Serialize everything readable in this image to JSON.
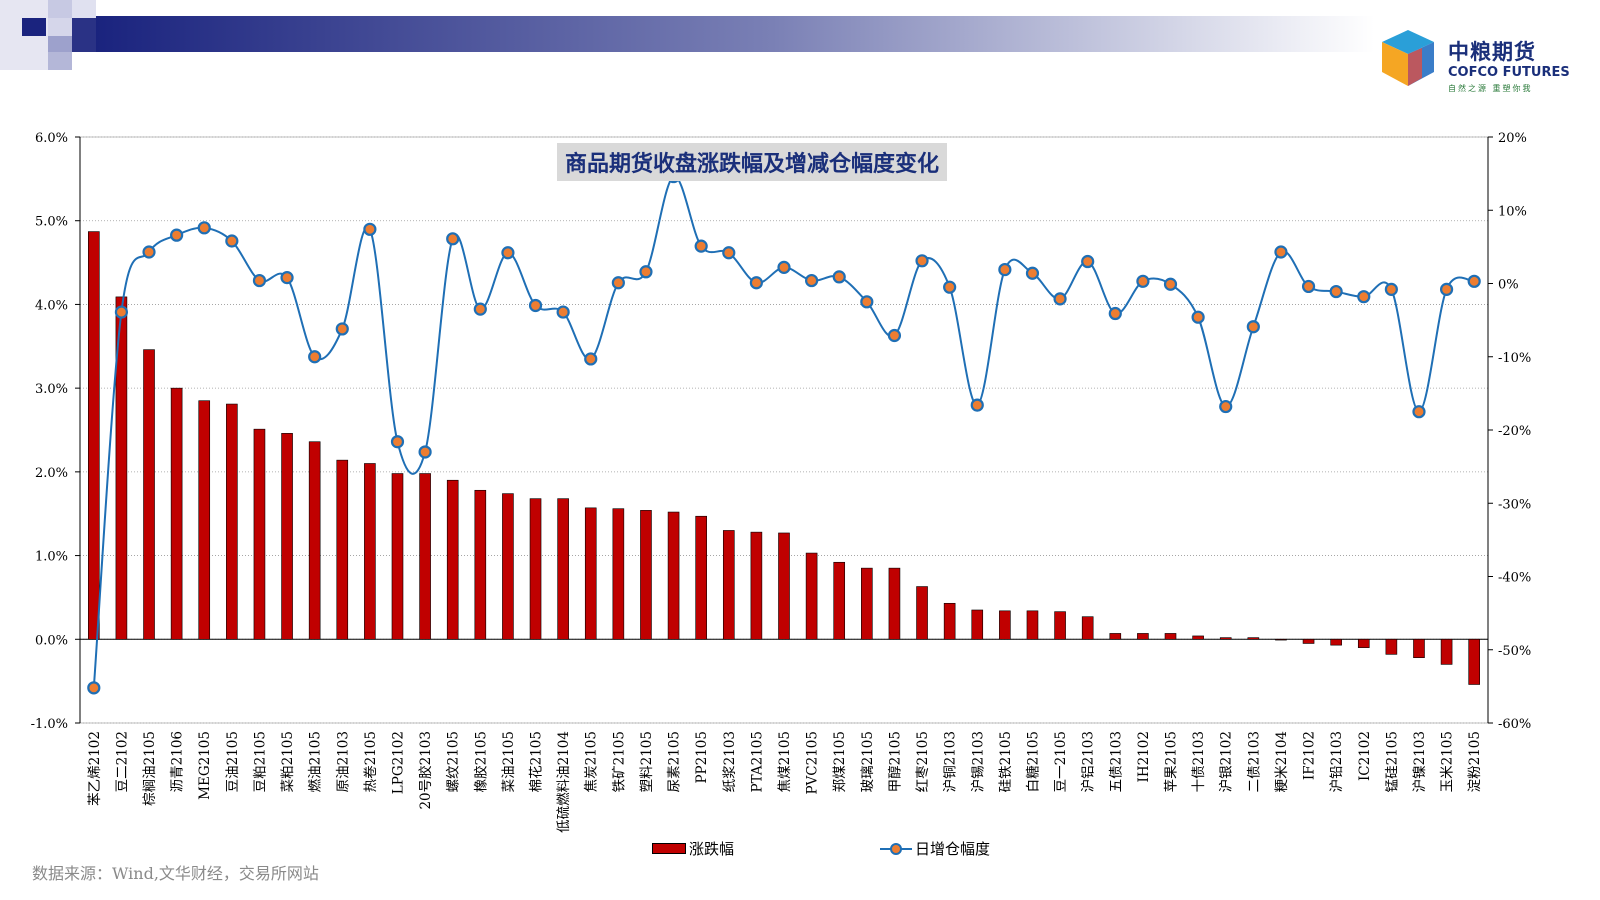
{
  "header": {
    "logo_cn": "中粮期货",
    "logo_en": "COFCO FUTURES",
    "logo_slogan": "自然之源 重塑你我"
  },
  "source_note": "数据来源：Wind,文华财经，交易所网站",
  "colors": {
    "bar": "#c00000",
    "line": "#1f6fb5",
    "marker": "#ed7d31",
    "title_bg": "#d9d9d9",
    "title_text": "#1a2f7a"
  },
  "chart_data": {
    "type": "bar",
    "title": "商品期货收盘涨跌幅及增减仓幅度变化",
    "categories": [
      "苯乙烯2102",
      "豆二2102",
      "棕榈油2105",
      "沥青2106",
      "MEG2105",
      "豆油2105",
      "豆粕2105",
      "菜粕2105",
      "燃油2105",
      "原油2103",
      "热卷2105",
      "LPG2102",
      "20号胶2103",
      "螺纹2105",
      "橡胶2105",
      "菜油2105",
      "棉花2105",
      "低硫燃料油2104",
      "焦炭2105",
      "铁矿2105",
      "塑料2105",
      "尿素2105",
      "PP2105",
      "纸浆2103",
      "PTA2105",
      "焦煤2105",
      "PVC2105",
      "郑煤2105",
      "玻璃2105",
      "甲醇2105",
      "红枣2105",
      "沪铜2103",
      "沪锡2103",
      "硅铁2105",
      "白糖2105",
      "豆一2105",
      "沪铝2103",
      "五债2103",
      "IH2102",
      "苹果2105",
      "十债2103",
      "沪银2102",
      "二债2103",
      "粳米2104",
      "IF2102",
      "沪铅2103",
      "IC2102",
      "锰硅2105",
      "沪镍2103",
      "玉米2105",
      "淀粉2105"
    ],
    "series": [
      {
        "name": "涨跌幅",
        "type": "bar",
        "axis": "left",
        "values": [
          4.87,
          4.09,
          3.46,
          3.0,
          2.85,
          2.81,
          2.51,
          2.46,
          2.36,
          2.14,
          2.1,
          1.98,
          1.98,
          1.9,
          1.78,
          1.74,
          1.68,
          1.68,
          1.57,
          1.56,
          1.54,
          1.52,
          1.47,
          1.3,
          1.28,
          1.27,
          1.03,
          0.92,
          0.85,
          0.85,
          0.63,
          0.43,
          0.35,
          0.34,
          0.34,
          0.33,
          0.27,
          0.07,
          0.07,
          0.07,
          0.04,
          0.02,
          0.02,
          0.0,
          -0.05,
          -0.07,
          -0.1,
          -0.18,
          -0.22,
          -0.3,
          -0.54
        ]
      },
      {
        "name": "日增仓幅度",
        "type": "line",
        "axis": "right",
        "values": [
          -55.2,
          -3.9,
          4.3,
          6.6,
          7.6,
          5.8,
          0.4,
          0.8,
          -10.0,
          -6.2,
          7.4,
          -21.6,
          -23.0,
          6.1,
          -3.5,
          4.2,
          -3.0,
          -3.9,
          -10.3,
          0.1,
          1.6,
          14.6,
          5.1,
          4.2,
          0.1,
          2.2,
          0.4,
          0.9,
          -2.5,
          -7.1,
          3.1,
          -0.5,
          -16.6,
          1.9,
          1.4,
          -2.1,
          3.0,
          -4.1,
          0.3,
          -0.1,
          -4.6,
          -16.8,
          -5.9,
          4.3,
          -0.4,
          -1.1,
          -1.8,
          -0.8,
          -17.5,
          -0.8,
          0.3
        ]
      }
    ],
    "y_left": {
      "min": -1.0,
      "max": 6.0,
      "ticks": [
        "6.0%",
        "5.0%",
        "4.0%",
        "3.0%",
        "2.0%",
        "1.0%",
        "0.0%",
        "-1.0%"
      ]
    },
    "y_right": {
      "min": -60,
      "max": 20,
      "ticks": [
        "20%",
        "10%",
        "0%",
        "-10%",
        "-20%",
        "-30%",
        "-40%",
        "-50%",
        "-60%"
      ]
    },
    "grid": "horizontal dotted",
    "legend": "bottom"
  }
}
